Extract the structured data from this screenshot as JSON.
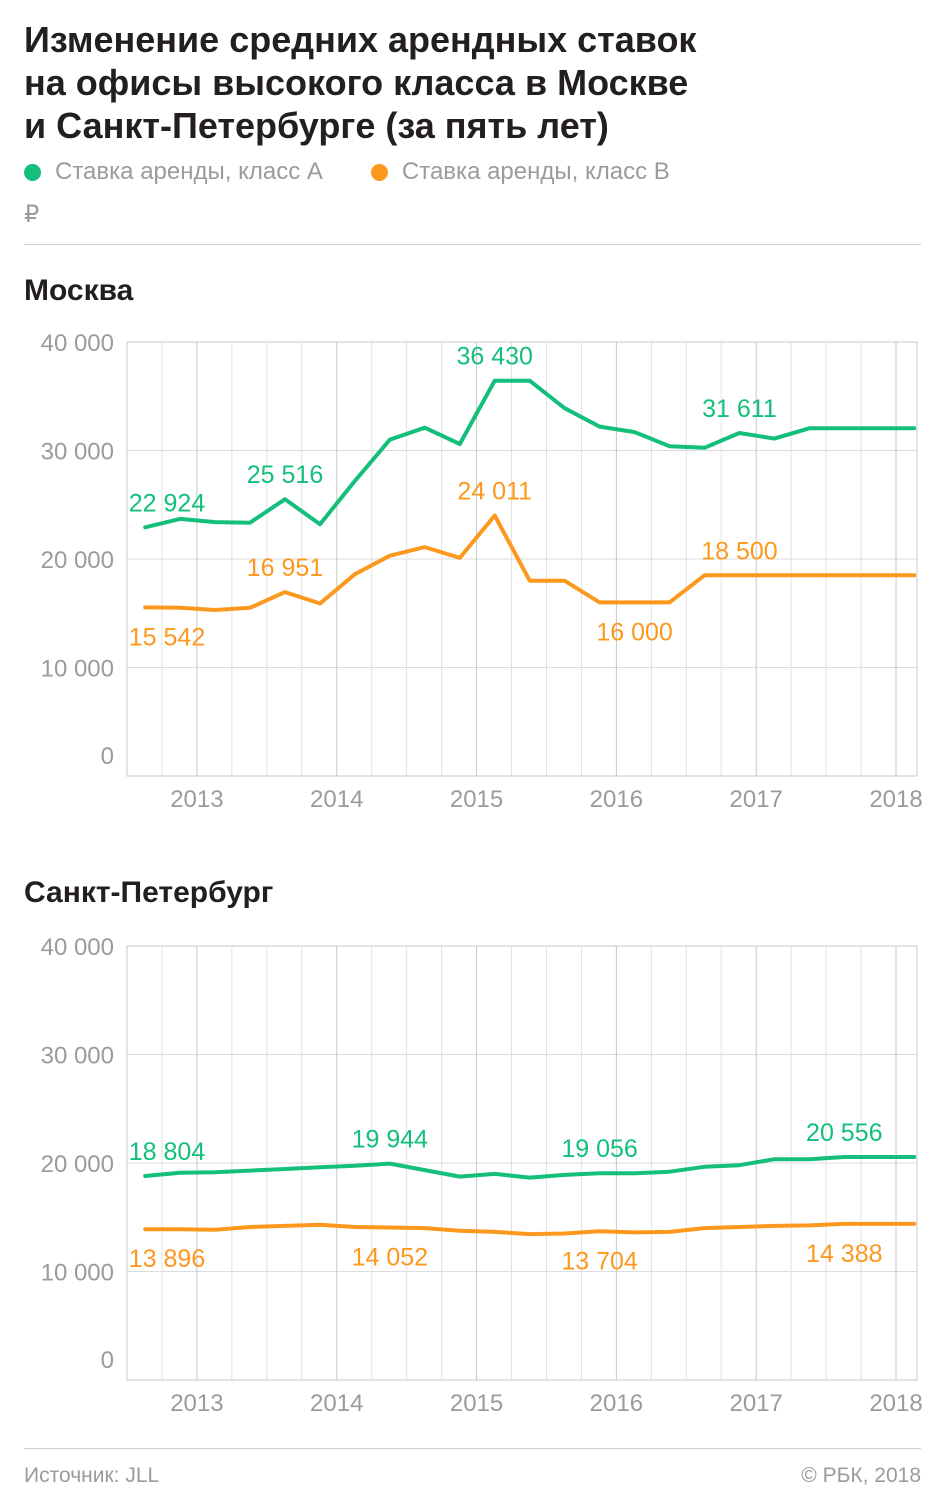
{
  "title": [
    "Изменение средних арендных ставок",
    "на офисы высокого класса в Москве",
    "и Санкт-Петербурге (за пять лет)"
  ],
  "legend": [
    {
      "label": "Ставка аренды, класс А",
      "color": "#13bf7b"
    },
    {
      "label": "Ставка аренды, класс В",
      "color": "#fd981f"
    }
  ],
  "unit": "₽",
  "source": "Источник: JLL",
  "copyright": "© РБК, 2018",
  "chart_data": [
    {
      "type": "line",
      "title": "Москва",
      "ylim": [
        0,
        40000
      ],
      "yticks": [
        0,
        10000,
        20000,
        30000,
        40000
      ],
      "ytick_labels": [
        "0",
        "10 000",
        "20 000",
        "30 000",
        "40 000"
      ],
      "xlim": [
        2012.5,
        2018.15
      ],
      "xticks": [
        2013,
        2014,
        2015,
        2016,
        2017,
        2018
      ],
      "xtick_labels": [
        "2013",
        "2014",
        "2015",
        "2016",
        "2017",
        "2018"
      ],
      "grid": true,
      "series": [
        {
          "name": "Ставка аренды, класс А",
          "color": "#13bf7b",
          "x": [
            2012.63,
            2012.88,
            2013.13,
            2013.38,
            2013.63,
            2013.88,
            2014.13,
            2014.38,
            2014.63,
            2014.88,
            2015.13,
            2015.38,
            2015.63,
            2015.88,
            2016.13,
            2016.38,
            2016.63,
            2016.88,
            2017.13,
            2017.38,
            2017.63,
            2017.88,
            2018.13
          ],
          "y": [
            22924,
            23700,
            23400,
            23350,
            25516,
            23200,
            27200,
            31000,
            32100,
            30600,
            36430,
            36430,
            33900,
            32200,
            31700,
            30400,
            30250,
            31611,
            31100,
            32050,
            32050,
            32050,
            32050
          ],
          "labels": [
            {
              "index": 0,
              "text": "22 924",
              "pos": "above"
            },
            {
              "index": 4,
              "text": "25 516",
              "pos": "above"
            },
            {
              "index": 10,
              "text": "36 430",
              "pos": "above"
            },
            {
              "index": 17,
              "text": "31 611",
              "pos": "above"
            }
          ]
        },
        {
          "name": "Ставка аренды, класс В",
          "color": "#fd981f",
          "x": [
            2012.63,
            2012.88,
            2013.13,
            2013.38,
            2013.63,
            2013.88,
            2014.13,
            2014.38,
            2014.63,
            2014.88,
            2015.13,
            2015.38,
            2015.63,
            2015.88,
            2016.13,
            2016.38,
            2016.63,
            2016.88,
            2017.13,
            2017.38,
            2017.63,
            2017.88,
            2018.13
          ],
          "y": [
            15542,
            15500,
            15300,
            15500,
            16951,
            15900,
            18600,
            20300,
            21100,
            20100,
            24011,
            18000,
            18000,
            16000,
            16000,
            16000,
            18500,
            18500,
            18500,
            18500,
            18500,
            18500,
            18500
          ],
          "labels": [
            {
              "index": 0,
              "text": "15 542",
              "pos": "below"
            },
            {
              "index": 4,
              "text": "16 951",
              "pos": "above"
            },
            {
              "index": 10,
              "text": "24 011",
              "pos": "above"
            },
            {
              "index": 14,
              "text": "16 000",
              "pos": "below"
            },
            {
              "index": 17,
              "text": "18 500",
              "pos": "above"
            }
          ]
        }
      ]
    },
    {
      "type": "line",
      "title": "Санкт-Петербург",
      "ylim": [
        0,
        40000
      ],
      "yticks": [
        0,
        10000,
        20000,
        30000,
        40000
      ],
      "ytick_labels": [
        "0",
        "10 000",
        "20 000",
        "30 000",
        "40 000"
      ],
      "xlim": [
        2012.5,
        2018.15
      ],
      "xticks": [
        2013,
        2014,
        2015,
        2016,
        2017,
        2018
      ],
      "xtick_labels": [
        "2013",
        "2014",
        "2015",
        "2016",
        "2017",
        "2018"
      ],
      "grid": true,
      "series": [
        {
          "name": "Ставка аренды, класс А",
          "color": "#13bf7b",
          "x": [
            2012.63,
            2012.88,
            2013.13,
            2013.38,
            2013.63,
            2013.88,
            2014.13,
            2014.38,
            2014.63,
            2014.88,
            2015.13,
            2015.38,
            2015.63,
            2015.88,
            2016.13,
            2016.38,
            2016.63,
            2016.88,
            2017.13,
            2017.38,
            2017.63,
            2017.88,
            2018.13
          ],
          "y": [
            18804,
            19100,
            19150,
            19300,
            19450,
            19600,
            19750,
            19944,
            19350,
            18750,
            19000,
            18650,
            18900,
            19056,
            19050,
            19200,
            19650,
            19800,
            20350,
            20350,
            20556,
            20556,
            20556
          ],
          "labels": [
            {
              "index": 0,
              "text": "18 804",
              "pos": "above"
            },
            {
              "index": 7,
              "text": "19 944",
              "pos": "above"
            },
            {
              "index": 13,
              "text": "19 056",
              "pos": "above"
            },
            {
              "index": 20,
              "text": "20 556",
              "pos": "above"
            }
          ]
        },
        {
          "name": "Ставка аренды, класс В",
          "color": "#fd981f",
          "x": [
            2012.63,
            2012.88,
            2013.13,
            2013.38,
            2013.63,
            2013.88,
            2014.13,
            2014.38,
            2014.63,
            2014.88,
            2015.13,
            2015.38,
            2015.63,
            2015.88,
            2016.13,
            2016.38,
            2016.63,
            2016.88,
            2017.13,
            2017.38,
            2017.63,
            2017.88,
            2018.13
          ],
          "y": [
            13896,
            13896,
            13850,
            14100,
            14200,
            14300,
            14100,
            14052,
            14000,
            13750,
            13650,
            13450,
            13500,
            13704,
            13600,
            13650,
            14000,
            14100,
            14200,
            14250,
            14388,
            14388,
            14388
          ],
          "labels": [
            {
              "index": 0,
              "text": "13 896",
              "pos": "below"
            },
            {
              "index": 7,
              "text": "14 052",
              "pos": "below"
            },
            {
              "index": 13,
              "text": "13 704",
              "pos": "below"
            },
            {
              "index": 20,
              "text": "14 388",
              "pos": "below"
            }
          ]
        }
      ]
    }
  ]
}
